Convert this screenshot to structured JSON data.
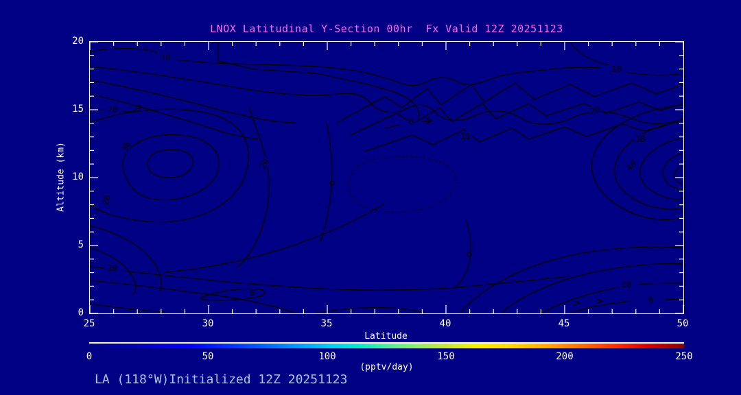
{
  "title": "LNOX Latitudinal Y-Section 00hr  Fx Valid 12Z 20251123",
  "caption": "LA (118°W)Initialized 12Z 20251123",
  "axes": {
    "x": {
      "label": "Latitude",
      "ticks": [
        "25",
        "30",
        "35",
        "40",
        "45",
        "50"
      ]
    },
    "y": {
      "label": "Altitude (km)",
      "ticks": [
        "0",
        "5",
        "10",
        "15",
        "20"
      ]
    }
  },
  "colorbar": {
    "ticks": [
      "0",
      "50",
      "100",
      "150",
      "200",
      "250"
    ],
    "units_label": "(pptv/day)"
  },
  "plot": {
    "contour_labels": [
      {
        "text": "10"
      },
      {
        "text": "10"
      },
      {
        "text": "20"
      },
      {
        "text": "30"
      },
      {
        "text": "20"
      },
      {
        "text": "20"
      },
      {
        "text": "0"
      },
      {
        "text": "10"
      },
      {
        "text": "20"
      },
      {
        "text": "30"
      },
      {
        "text": "40"
      },
      {
        "text": "10"
      },
      {
        "text": "10"
      },
      {
        "text": "0"
      },
      {
        "text": "0"
      }
    ]
  },
  "colors": {
    "background": "#000084",
    "title_text": "#ff66ff",
    "caption_text": "#a4c8f0",
    "axis_text": "#ffffff",
    "axis_frame": "#ffffff",
    "contour_line": "#000000",
    "colorbar_palette": [
      "#000084",
      "#0000ff",
      "#0090ff",
      "#00e8d0",
      "#4cee9f",
      "#c8e838",
      "#f4f000",
      "#ffa800",
      "#ff6c00",
      "#ff2800",
      "#8c0000"
    ]
  },
  "chart_data": {
    "type": "contour",
    "title": "LNOX Latitudinal Y-Section 00hr  Fx Valid 12Z 20251123",
    "xlabel": "Latitude",
    "ylabel": "Altitude (km)",
    "xlim": [
      25,
      50
    ],
    "ylim": [
      0,
      20
    ],
    "x_major_tick_interval": 5,
    "x_minor_tick_interval": 1,
    "y_major_tick_interval": 5,
    "y_minor_tick_interval": 1,
    "grid": false,
    "contour_line_color": "black",
    "labeled_contour_levels": [
      0,
      10,
      20,
      30,
      40
    ],
    "negative_contour_style": "dotted",
    "features": [
      {
        "description": "closed maximum (>30) centered near lat 28, alt 11-12 km"
      },
      {
        "description": "strong maximum (>40) at right edge near lat 49-50, alt 10-11 km"
      },
      {
        "description": "dotted (negative/sub-zero) closed region near lat 37-40, alt 7-10 km"
      },
      {
        "description": "band of 10-20 contours across top near 17-19 km"
      },
      {
        "description": "near-zero values in lowest 1-2 km across all latitudes"
      }
    ],
    "colorbar": {
      "min": 0,
      "max": 250,
      "ticks": [
        0,
        50,
        100,
        150,
        200,
        250
      ],
      "units": "pptv/day",
      "orientation": "horizontal",
      "palette_description": "rainbow: navy-blue-cyan-green-yellow-orange-red-darkred"
    }
  }
}
